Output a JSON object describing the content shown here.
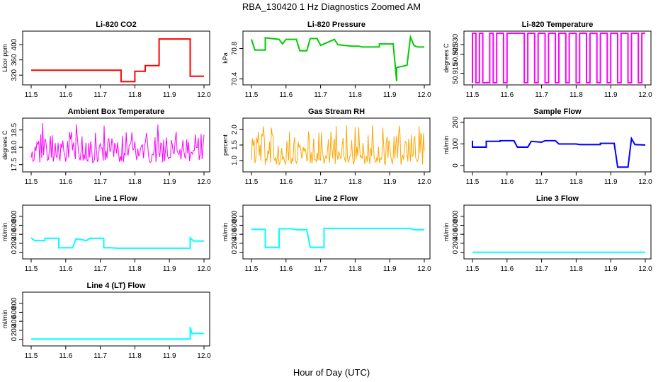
{
  "figure_title": "RBA_130420  1 Hz Diagnostics Zoomed AM",
  "x_axis_label": "Hour of Day (UTC)",
  "chart_data": [
    {
      "type": "line",
      "title": "Li-820 CO2",
      "ylabel": "Licor ppm",
      "color": "#ff0000",
      "xlim": [
        11.5,
        12.0
      ],
      "ylim": [
        300,
        430
      ],
      "xticks": [
        "11.5",
        "11.6",
        "11.7",
        "11.8",
        "11.9",
        "12.0"
      ],
      "yticks": [
        {
          "v": 320,
          "label": "320"
        },
        {
          "v": 360,
          "label": "360"
        },
        {
          "v": 400,
          "label": "400"
        }
      ],
      "series": [
        {
          "name": "CO2",
          "points": [
            [
              11.5,
              333
            ],
            [
              11.76,
              333
            ],
            [
              11.76,
              303
            ],
            [
              11.8,
              303
            ],
            [
              11.8,
              330
            ],
            [
              11.83,
              330
            ],
            [
              11.83,
              345
            ],
            [
              11.87,
              345
            ],
            [
              11.87,
              415
            ],
            [
              11.96,
              415
            ],
            [
              11.96,
              317
            ],
            [
              12.0,
              317
            ]
          ]
        }
      ]
    },
    {
      "type": "line",
      "title": "Li-820 Pressure",
      "ylabel": "kPa",
      "color": "#00cc00",
      "xlim": [
        11.5,
        12.0
      ],
      "ylim": [
        70.35,
        71.0
      ],
      "xticks": [
        "11.5",
        "11.6",
        "11.7",
        "11.8",
        "11.9",
        "12.0"
      ],
      "yticks": [
        {
          "v": 70.4,
          "label": "70.4"
        },
        {
          "v": 70.8,
          "label": "70.8"
        }
      ],
      "series": [
        {
          "name": "Pressure",
          "points": [
            [
              11.5,
              70.92
            ],
            [
              11.51,
              70.78
            ],
            [
              11.54,
              70.78
            ],
            [
              11.54,
              70.94
            ],
            [
              11.58,
              70.92
            ],
            [
              11.59,
              70.86
            ],
            [
              11.6,
              70.92
            ],
            [
              11.63,
              70.92
            ],
            [
              11.64,
              70.77
            ],
            [
              11.66,
              70.77
            ],
            [
              11.67,
              70.93
            ],
            [
              11.69,
              70.93
            ],
            [
              11.7,
              70.84
            ],
            [
              11.72,
              70.88
            ],
            [
              11.74,
              70.92
            ],
            [
              11.75,
              70.85
            ],
            [
              11.79,
              70.83
            ],
            [
              11.81,
              70.83
            ],
            [
              11.82,
              70.82
            ],
            [
              11.87,
              70.82
            ],
            [
              11.87,
              70.86
            ],
            [
              11.91,
              70.86
            ],
            [
              11.92,
              70.37
            ],
            [
              11.92,
              70.55
            ],
            [
              11.95,
              70.58
            ],
            [
              11.96,
              70.95
            ],
            [
              11.97,
              70.84
            ],
            [
              11.98,
              70.82
            ],
            [
              12.0,
              70.82
            ]
          ]
        }
      ]
    },
    {
      "type": "line",
      "title": "Li-820 Temperature",
      "ylabel": "degrees C",
      "color": "#ff00ff",
      "xlim": [
        11.5,
        12.0
      ],
      "ylim": [
        50.91,
        50.936
      ],
      "xticks": [
        "11.5",
        "11.6",
        "11.7",
        "11.8",
        "11.9",
        "12.0"
      ],
      "yticks": [
        {
          "v": 50.915,
          "label": "50.915"
        },
        {
          "v": 50.925,
          "label": "50.925"
        },
        {
          "v": 50.93,
          "label": "50.930"
        }
      ],
      "series": [
        {
          "name": "Temperature",
          "points": [
            [
              11.5,
              50.91
            ],
            [
              11.5,
              50.936
            ],
            [
              11.51,
              50.936
            ],
            [
              11.51,
              50.91
            ],
            [
              11.52,
              50.91
            ],
            [
              11.52,
              50.936
            ],
            [
              11.53,
              50.936
            ],
            [
              11.53,
              50.91
            ],
            [
              11.55,
              50.91
            ],
            [
              11.55,
              50.936
            ],
            [
              11.56,
              50.936
            ],
            [
              11.56,
              50.91
            ],
            [
              11.57,
              50.91
            ],
            [
              11.57,
              50.936
            ],
            [
              11.59,
              50.936
            ],
            [
              11.59,
              50.91
            ],
            [
              11.6,
              50.91
            ],
            [
              11.6,
              50.936
            ],
            [
              11.65,
              50.936
            ],
            [
              11.65,
              50.91
            ],
            [
              11.66,
              50.91
            ],
            [
              11.66,
              50.936
            ],
            [
              11.68,
              50.936
            ],
            [
              11.68,
              50.91
            ],
            [
              11.69,
              50.91
            ],
            [
              11.69,
              50.936
            ],
            [
              11.71,
              50.936
            ],
            [
              11.71,
              50.91
            ],
            [
              11.72,
              50.91
            ],
            [
              11.72,
              50.936
            ],
            [
              11.74,
              50.936
            ],
            [
              11.74,
              50.91
            ],
            [
              11.75,
              50.91
            ],
            [
              11.75,
              50.936
            ],
            [
              11.77,
              50.936
            ],
            [
              11.77,
              50.91
            ],
            [
              11.78,
              50.91
            ],
            [
              11.78,
              50.936
            ],
            [
              11.8,
              50.936
            ],
            [
              11.8,
              50.91
            ],
            [
              11.81,
              50.91
            ],
            [
              11.81,
              50.936
            ],
            [
              11.83,
              50.936
            ],
            [
              11.83,
              50.91
            ],
            [
              11.84,
              50.91
            ],
            [
              11.84,
              50.936
            ],
            [
              11.86,
              50.936
            ],
            [
              11.86,
              50.91
            ],
            [
              11.87,
              50.91
            ],
            [
              11.87,
              50.936
            ],
            [
              11.89,
              50.936
            ],
            [
              11.89,
              50.91
            ],
            [
              11.9,
              50.91
            ],
            [
              11.9,
              50.936
            ],
            [
              11.92,
              50.936
            ],
            [
              11.92,
              50.91
            ],
            [
              11.93,
              50.91
            ],
            [
              11.93,
              50.936
            ],
            [
              11.95,
              50.936
            ],
            [
              11.95,
              50.91
            ],
            [
              11.96,
              50.91
            ],
            [
              11.96,
              50.936
            ],
            [
              11.98,
              50.936
            ],
            [
              11.98,
              50.91
            ],
            [
              11.99,
              50.91
            ],
            [
              11.99,
              50.936
            ],
            [
              12.0,
              50.936
            ]
          ]
        }
      ]
    },
    {
      "type": "line",
      "title": "Ambient Box Temperature",
      "ylabel": "degrees C",
      "color": "#ff00ff",
      "xlim": [
        11.5,
        12.0
      ],
      "ylim": [
        17.35,
        18.78
      ],
      "xticks": [
        "11.5",
        "11.6",
        "11.7",
        "11.8",
        "11.9",
        "12.0"
      ],
      "yticks": [
        {
          "v": 17.5,
          "label": "17.5"
        },
        {
          "v": 18.0,
          "label": "18.0"
        },
        {
          "v": 18.5,
          "label": "18.5"
        }
      ],
      "series": [
        {
          "name": "Ambient",
          "noise": {
            "mean": 17.92,
            "low": 17.55,
            "high": 18.45,
            "spike": 18.7,
            "n": 180
          }
        }
      ]
    },
    {
      "type": "line",
      "title": "Gas Stream RH",
      "ylabel": "percent",
      "color": "#ffa500",
      "xlim": [
        11.5,
        12.0
      ],
      "ylim": [
        0.7,
        2.3
      ],
      "xticks": [
        "11.5",
        "11.6",
        "11.7",
        "11.8",
        "11.9",
        "12.0"
      ],
      "yticks": [
        {
          "v": 1.0,
          "label": "1.0"
        },
        {
          "v": 1.5,
          "label": "1.5"
        },
        {
          "v": 2.0,
          "label": "2.0"
        }
      ],
      "series": [
        {
          "name": "RH",
          "noise": {
            "mean": 1.15,
            "low": 0.85,
            "high": 1.95,
            "spike": 2.15,
            "n": 200
          }
        }
      ]
    },
    {
      "type": "line",
      "title": "Sample Flow",
      "ylabel": "ml/min",
      "color": "#0000ff",
      "xlim": [
        11.5,
        12.0
      ],
      "ylim": [
        -20,
        210
      ],
      "xticks": [
        "11.5",
        "11.6",
        "11.7",
        "11.8",
        "11.9",
        "12.0"
      ],
      "yticks": [
        {
          "v": 0,
          "label": "0"
        },
        {
          "v": 100,
          "label": "100"
        },
        {
          "v": 200,
          "label": "200"
        }
      ],
      "series": [
        {
          "name": "Sample",
          "points": [
            [
              11.5,
              115
            ],
            [
              11.5,
              85
            ],
            [
              11.54,
              85
            ],
            [
              11.54,
              112
            ],
            [
              11.58,
              112
            ],
            [
              11.58,
              115
            ],
            [
              11.62,
              115
            ],
            [
              11.63,
              85
            ],
            [
              11.66,
              85
            ],
            [
              11.67,
              112
            ],
            [
              11.7,
              108
            ],
            [
              11.71,
              115
            ],
            [
              11.74,
              115
            ],
            [
              11.75,
              100
            ],
            [
              11.8,
              100
            ],
            [
              11.81,
              97
            ],
            [
              11.87,
              97
            ],
            [
              11.87,
              103
            ],
            [
              11.91,
              103
            ],
            [
              11.92,
              -8
            ],
            [
              11.95,
              -8
            ],
            [
              11.96,
              125
            ],
            [
              11.97,
              97
            ],
            [
              12.0,
              95
            ]
          ]
        }
      ]
    },
    {
      "type": "line",
      "title": "Line 1 Flow",
      "ylabel": "ml/min",
      "color": "#00ffff",
      "xlim": [
        11.5,
        12.0
      ],
      "ylim": [
        -100,
        1000
      ],
      "xticks": [
        "11.5",
        "11.6",
        "11.7",
        "11.8",
        "11.9",
        "12.0"
      ],
      "yticks": [
        {
          "v": 0,
          "label": "0"
        },
        {
          "v": 200,
          "label": "200"
        },
        {
          "v": 400,
          "label": "400"
        },
        {
          "v": 600,
          "label": "600"
        },
        {
          "v": 800,
          "label": "800"
        }
      ],
      "series": [
        {
          "name": "Line1",
          "points": [
            [
              11.5,
              320
            ],
            [
              11.51,
              260
            ],
            [
              11.54,
              260
            ],
            [
              11.54,
              310
            ],
            [
              11.58,
              310
            ],
            [
              11.58,
              100
            ],
            [
              11.62,
              100
            ],
            [
              11.63,
              300
            ],
            [
              11.66,
              260
            ],
            [
              11.67,
              310
            ],
            [
              11.71,
              310
            ],
            [
              11.71,
              100
            ],
            [
              11.73,
              100
            ],
            [
              11.75,
              90
            ],
            [
              11.96,
              90
            ],
            [
              11.96,
              320
            ],
            [
              11.97,
              250
            ],
            [
              12.0,
              250
            ]
          ]
        }
      ]
    },
    {
      "type": "line",
      "title": "Line 2 Flow",
      "ylabel": "ml/min",
      "color": "#00ffff",
      "xlim": [
        11.5,
        12.0
      ],
      "ylim": [
        -100,
        1000
      ],
      "xticks": [
        "11.5",
        "11.6",
        "11.7",
        "11.8",
        "11.9",
        "12.0"
      ],
      "yticks": [
        {
          "v": 0,
          "label": "0"
        },
        {
          "v": 200,
          "label": "200"
        },
        {
          "v": 400,
          "label": "400"
        },
        {
          "v": 600,
          "label": "600"
        },
        {
          "v": 800,
          "label": "800"
        }
      ],
      "series": [
        {
          "name": "Line2",
          "points": [
            [
              11.5,
              510
            ],
            [
              11.54,
              510
            ],
            [
              11.54,
              110
            ],
            [
              11.58,
              110
            ],
            [
              11.58,
              520
            ],
            [
              11.62,
              520
            ],
            [
              11.63,
              500
            ],
            [
              11.66,
              500
            ],
            [
              11.67,
              110
            ],
            [
              11.71,
              110
            ],
            [
              11.71,
              530
            ],
            [
              11.96,
              530
            ],
            [
              11.97,
              500
            ],
            [
              12.0,
              500
            ]
          ]
        }
      ]
    },
    {
      "type": "line",
      "title": "Line 3 Flow",
      "ylabel": "ml/min",
      "color": "#00ffff",
      "xlim": [
        11.5,
        12.0
      ],
      "ylim": [
        -100,
        1000
      ],
      "xticks": [
        "11.5",
        "11.6",
        "11.7",
        "11.8",
        "11.9",
        "12.0"
      ],
      "yticks": [
        {
          "v": 0,
          "label": "0"
        },
        {
          "v": 200,
          "label": "200"
        },
        {
          "v": 400,
          "label": "400"
        },
        {
          "v": 600,
          "label": "600"
        },
        {
          "v": 800,
          "label": "800"
        }
      ],
      "series": [
        {
          "name": "Line3",
          "points": [
            [
              11.5,
              0
            ],
            [
              12.0,
              0
            ]
          ]
        }
      ]
    },
    {
      "type": "line",
      "title": "Line 4 (LT) Flow",
      "ylabel": "ml/min",
      "color": "#00ffff",
      "xlim": [
        11.5,
        12.0
      ],
      "ylim": [
        -100,
        1000
      ],
      "xticks": [
        "11.5",
        "11.6",
        "11.7",
        "11.8",
        "11.9",
        "12.0"
      ],
      "yticks": [
        {
          "v": 0,
          "label": "0"
        },
        {
          "v": 200,
          "label": "200"
        },
        {
          "v": 400,
          "label": "400"
        },
        {
          "v": 600,
          "label": "600"
        },
        {
          "v": 800,
          "label": "800"
        }
      ],
      "series": [
        {
          "name": "Line4",
          "points": [
            [
              11.5,
              5
            ],
            [
              11.96,
              5
            ],
            [
              11.96,
              270
            ],
            [
              11.965,
              130
            ],
            [
              12.0,
              130
            ]
          ]
        }
      ]
    }
  ]
}
